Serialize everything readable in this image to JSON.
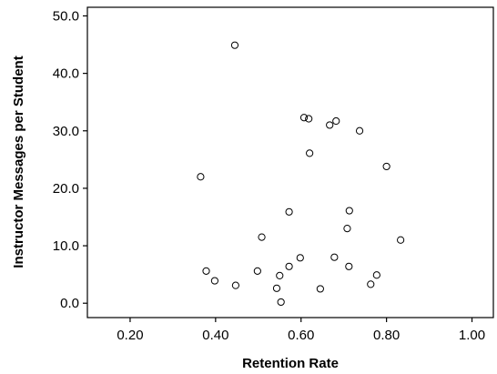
{
  "chart_data": {
    "type": "scatter",
    "xlabel": "Retention Rate",
    "ylabel": "Instructor Messages per Student",
    "xlim": [
      0.1,
      1.05
    ],
    "ylim": [
      -2.5,
      51.5
    ],
    "x_ticks": [
      0.2,
      0.4,
      0.6,
      0.8,
      1.0
    ],
    "x_tick_labels": [
      "0.20",
      "0.40",
      "0.60",
      "0.80",
      "1.00"
    ],
    "y_ticks": [
      0,
      10,
      20,
      30,
      40,
      50
    ],
    "y_tick_labels": [
      "0.0",
      "10.0",
      "20.0",
      "30.0",
      "40.0",
      "50.0"
    ],
    "grid": false,
    "legend": "none",
    "marker": "open-circle",
    "points": [
      {
        "x": 0.445,
        "y": 44.9
      },
      {
        "x": 0.365,
        "y": 22.0
      },
      {
        "x": 0.607,
        "y": 32.3
      },
      {
        "x": 0.618,
        "y": 32.1
      },
      {
        "x": 0.682,
        "y": 31.7
      },
      {
        "x": 0.667,
        "y": 31.0
      },
      {
        "x": 0.737,
        "y": 30.0
      },
      {
        "x": 0.62,
        "y": 26.1
      },
      {
        "x": 0.8,
        "y": 23.8
      },
      {
        "x": 0.572,
        "y": 15.9
      },
      {
        "x": 0.713,
        "y": 16.1
      },
      {
        "x": 0.708,
        "y": 13.0
      },
      {
        "x": 0.508,
        "y": 11.5
      },
      {
        "x": 0.833,
        "y": 11.0
      },
      {
        "x": 0.598,
        "y": 7.9
      },
      {
        "x": 0.678,
        "y": 8.0
      },
      {
        "x": 0.378,
        "y": 5.6
      },
      {
        "x": 0.498,
        "y": 5.6
      },
      {
        "x": 0.572,
        "y": 6.4
      },
      {
        "x": 0.712,
        "y": 6.4
      },
      {
        "x": 0.398,
        "y": 3.9
      },
      {
        "x": 0.55,
        "y": 4.8
      },
      {
        "x": 0.777,
        "y": 4.9
      },
      {
        "x": 0.447,
        "y": 3.1
      },
      {
        "x": 0.543,
        "y": 2.6
      },
      {
        "x": 0.763,
        "y": 3.3
      },
      {
        "x": 0.645,
        "y": 2.5
      },
      {
        "x": 0.553,
        "y": 0.2
      }
    ]
  }
}
